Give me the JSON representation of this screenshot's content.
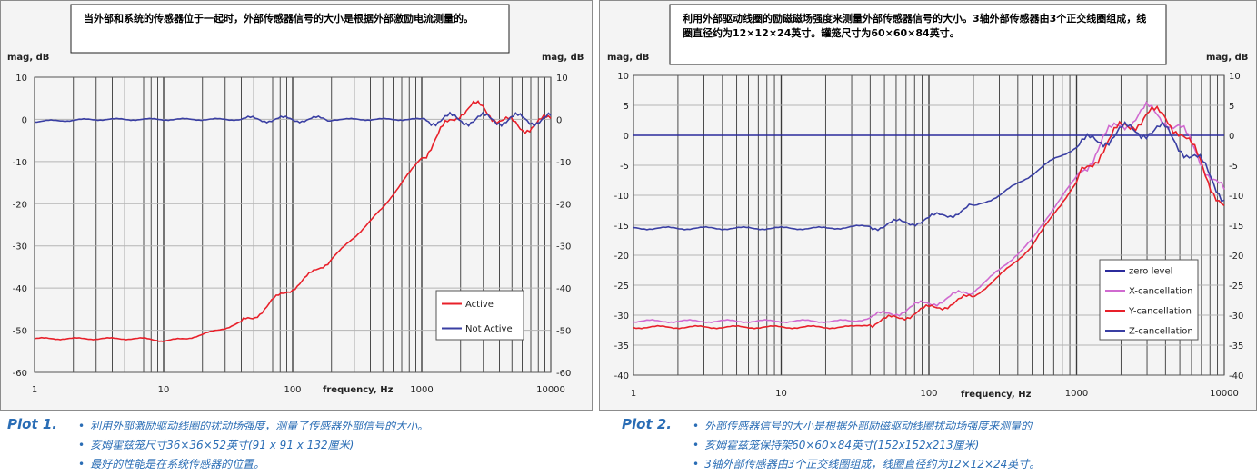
{
  "charts": [
    {
      "id": "plot1",
      "annotation": "当外部和系统的传感器位于一起时，外部传感器信号的大小是根据外部激励电流测量的。",
      "y_label_left": "mag, dB",
      "y_label_right": "mag, dB",
      "x_label": "frequency, Hz",
      "x_ticks": [
        "1",
        "10",
        "100",
        "1000",
        "10000"
      ],
      "y_ticks": [
        "10",
        "0",
        "-10",
        "-20",
        "-30",
        "-40",
        "-50",
        "-60"
      ],
      "colors": {
        "Active": "#e8202a",
        "Not Active": "#3a3fa3",
        "grid": "#3a3a3a",
        "plot_bg": "#f4f4f4"
      }
    },
    {
      "id": "plot2",
      "annotation": "利用外部驱动线圈的励磁磁场强度来测量外部传感器信号的大小。3轴外部传感器由3个正交线圈组成，线圈直径约为12×12×24英寸。罐笼尺寸为60×60×84英寸。",
      "y_label_left": "mag, dB",
      "y_label_right": "mag, dB",
      "x_label": "frequency, Hz",
      "x_ticks": [
        "1",
        "10",
        "100",
        "1000",
        "10000"
      ],
      "y_ticks": [
        "10",
        "5",
        "0",
        "-5",
        "-10",
        "-15",
        "-20",
        "-25",
        "-30",
        "-35",
        "-40"
      ],
      "colors": {
        "zero level": "#2b2b9c",
        "X-cancellation": "#d06ad0",
        "Y-cancellation": "#e8202a",
        "Z-cancellation": "#3a3fa3",
        "grid": "#3a3a3a",
        "plot_bg": "#f4f4f4"
      }
    }
  ],
  "chart_data": [
    {
      "type": "line",
      "x_scale": "log",
      "xlim": [
        1,
        10000
      ],
      "ylim": [
        -60,
        10
      ],
      "legend_position": "bottom-right",
      "series": [
        {
          "name": "Active",
          "x": [
            1,
            2,
            4,
            7,
            10,
            15,
            20,
            30,
            50,
            70,
            100,
            150,
            200,
            300,
            500,
            700,
            1000,
            1500,
            2000,
            2500,
            3000,
            4000,
            6000,
            8000,
            10000
          ],
          "y": [
            -52,
            -52,
            -52,
            -52,
            -52.5,
            -52,
            -51,
            -49.5,
            -47,
            -43,
            -40,
            -36,
            -33,
            -28,
            -21,
            -15,
            -9,
            -2,
            2,
            3,
            2.5,
            0,
            -2,
            -1,
            0
          ]
        },
        {
          "name": "Not Active",
          "x": [
            1,
            3,
            10,
            30,
            100,
            300,
            1000,
            3000,
            6000,
            10000
          ],
          "y": [
            -0.5,
            0,
            0,
            0,
            0,
            0,
            0,
            0,
            0,
            0
          ]
        }
      ]
    },
    {
      "type": "line",
      "x_scale": "log",
      "xlim": [
        1,
        10000
      ],
      "ylim": [
        -40,
        10
      ],
      "legend_position": "bottom-right",
      "series": [
        {
          "name": "zero level",
          "x": [
            1,
            10000
          ],
          "y": [
            0,
            0
          ]
        },
        {
          "name": "X-cancellation",
          "x": [
            1,
            3,
            10,
            20,
            30,
            50,
            70,
            100,
            200,
            300,
            500,
            700,
            1000,
            1500,
            2000,
            3000,
            4000,
            5000,
            7000,
            10000
          ],
          "y": [
            -31,
            -31,
            -31,
            -31,
            -31,
            -30,
            -29,
            -28,
            -26,
            -22.5,
            -17.5,
            -12,
            -7,
            -1,
            2,
            4,
            3,
            1,
            -4,
            -10
          ]
        },
        {
          "name": "Y-cancellation",
          "x": [
            1,
            3,
            10,
            20,
            30,
            50,
            70,
            100,
            200,
            300,
            500,
            700,
            1000,
            1500,
            2000,
            3000,
            4000,
            5000,
            7000,
            10000
          ],
          "y": [
            -32,
            -32,
            -32,
            -32,
            -32,
            -31,
            -30,
            -29,
            -27,
            -23.5,
            -18.5,
            -13,
            -8,
            -2,
            1,
            3.5,
            3,
            1,
            -5,
            -12
          ]
        },
        {
          "name": "Z-cancellation",
          "x": [
            1,
            3,
            10,
            20,
            30,
            50,
            70,
            100,
            200,
            300,
            500,
            700,
            1000,
            1500,
            2000,
            3000,
            4000,
            5000,
            7000,
            10000
          ],
          "y": [
            -15.5,
            -15.5,
            -15.5,
            -15.5,
            -15.3,
            -15,
            -14.5,
            -14,
            -12,
            -10,
            -6.5,
            -4,
            -2,
            -0.5,
            0.5,
            1,
            0.5,
            -1.5,
            -5,
            -10
          ]
        }
      ]
    }
  ],
  "captions": [
    {
      "label": "Plot 1.",
      "items": [
        "利用外部激励驱动线圈的扰动场强度，测量了传感器外部信号的大小。",
        "亥姆霍兹笼尺寸36×36×52英寸(91 x 91 x 132厘米)",
        "最好的性能是在系统传感器的位置。"
      ]
    },
    {
      "label": "Plot 2.",
      "items": [
        "外部传感器信号的大小是根据外部励磁驱动线圈扰动场强度来测量的",
        "亥姆霍兹笼保持架60×60×84英寸(152x152x213厘米)",
        "3轴外部传感器由3个正交线圈组成，线圈直径约为12×12×24英寸。"
      ]
    }
  ]
}
